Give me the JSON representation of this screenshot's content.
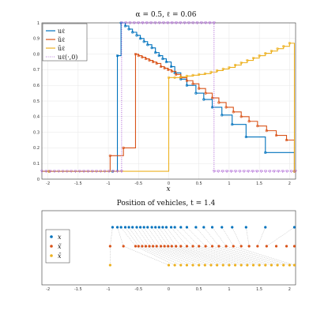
{
  "colors": {
    "blue": "#0072BD",
    "orange": "#D95319",
    "yellow": "#EDB120",
    "purple": "#A24FD0",
    "grid": "#e6e6e6",
    "link": "#888888"
  },
  "chart_data": [
    {
      "type": "line",
      "title": "α = 0.5, ℓ = 0.06",
      "xlabel": "x",
      "ylabel": "",
      "xlim": [
        -2.1,
        2.1
      ],
      "ylim": [
        0,
        1
      ],
      "grid": true,
      "legend_position": "top-left",
      "xticks": [
        "-2",
        "-1.5",
        "-1",
        "-0.5",
        "0",
        "0.5",
        "1",
        "1.5",
        "2"
      ],
      "yticks": [
        "0",
        "0.1",
        "0.2",
        "0.3",
        "0.4",
        "0.5",
        "0.6",
        "0.7",
        "0.8",
        "0.9",
        "1"
      ],
      "series": [
        {
          "name": "uℓ",
          "style": "step",
          "x": [
            -2.1,
            -0.93,
            -0.85,
            -0.79,
            -0.72,
            -0.66,
            -0.6,
            -0.53,
            -0.47,
            -0.41,
            -0.35,
            -0.28,
            -0.22,
            -0.16,
            -0.1,
            -0.04,
            0.04,
            0.1,
            0.2,
            0.3,
            0.45,
            0.58,
            0.72,
            0.88,
            1.05,
            1.28,
            1.6,
            2.08,
            2.1
          ],
          "y": [
            0.05,
            0.05,
            0.79,
            1.0,
            0.98,
            0.96,
            0.94,
            0.92,
            0.9,
            0.88,
            0.86,
            0.84,
            0.81,
            0.79,
            0.77,
            0.75,
            0.72,
            0.68,
            0.64,
            0.6,
            0.55,
            0.51,
            0.46,
            0.41,
            0.35,
            0.27,
            0.17,
            0.05,
            0.05
          ]
        },
        {
          "name": "ũℓ",
          "style": "step",
          "x": [
            -2.1,
            -0.97,
            -0.75,
            -0.55,
            -0.5,
            -0.44,
            -0.38,
            -0.32,
            -0.26,
            -0.2,
            -0.13,
            -0.07,
            -0.01,
            0.05,
            0.12,
            0.2,
            0.3,
            0.4,
            0.5,
            0.61,
            0.72,
            0.83,
            0.95,
            1.07,
            1.2,
            1.33,
            1.47,
            1.62,
            1.78,
            1.95,
            2.08,
            2.1
          ],
          "y": [
            0.05,
            0.15,
            0.2,
            0.8,
            0.79,
            0.78,
            0.77,
            0.76,
            0.75,
            0.74,
            0.72,
            0.71,
            0.7,
            0.69,
            0.67,
            0.65,
            0.63,
            0.61,
            0.58,
            0.55,
            0.52,
            0.49,
            0.46,
            0.43,
            0.4,
            0.37,
            0.34,
            0.31,
            0.28,
            0.25,
            0.05,
            0.05
          ]
        },
        {
          "name": "ūℓ",
          "style": "step",
          "x": [
            -2.1,
            0.0,
            0.1,
            0.2,
            0.3,
            0.4,
            0.5,
            0.6,
            0.7,
            0.8,
            0.9,
            1.0,
            1.1,
            1.2,
            1.3,
            1.4,
            1.5,
            1.6,
            1.7,
            1.8,
            1.9,
            2.0,
            2.08,
            2.1
          ],
          "y": [
            0.05,
            0.65,
            0.65,
            0.655,
            0.66,
            0.665,
            0.67,
            0.675,
            0.685,
            0.695,
            0.705,
            0.715,
            0.73,
            0.745,
            0.76,
            0.775,
            0.79,
            0.805,
            0.82,
            0.835,
            0.85,
            0.87,
            0.05,
            0.05
          ]
        },
        {
          "name": "uℓ(·,0)",
          "style": "step-dotted",
          "x": [
            -2.1,
            -0.78,
            0.75,
            2.1
          ],
          "y": [
            0.05,
            1.0,
            0.05,
            0.05
          ]
        }
      ]
    },
    {
      "type": "scatter",
      "title": "Position of vehicles, t = 1.4",
      "xlabel": "",
      "ylabel": "",
      "xlim": [
        -2.1,
        2.1
      ],
      "grid": false,
      "legend_position": "left",
      "xticks": [
        "-2",
        "-1.5",
        "-1",
        "-0.5",
        "0",
        "0.5",
        "1",
        "1.5",
        "2"
      ],
      "series": [
        {
          "name": "x",
          "row": 3,
          "x": [
            -0.93,
            -0.85,
            -0.79,
            -0.72,
            -0.66,
            -0.6,
            -0.53,
            -0.47,
            -0.41,
            -0.35,
            -0.28,
            -0.22,
            -0.16,
            -0.1,
            -0.04,
            0.04,
            0.1,
            0.2,
            0.3,
            0.45,
            0.58,
            0.72,
            0.88,
            1.05,
            1.28,
            1.6,
            2.08
          ]
        },
        {
          "name": "x̃",
          "row": 2,
          "x": [
            -0.97,
            -0.75,
            -0.55,
            -0.5,
            -0.44,
            -0.38,
            -0.32,
            -0.26,
            -0.2,
            -0.13,
            -0.07,
            -0.01,
            0.05,
            0.12,
            0.2,
            0.3,
            0.4,
            0.5,
            0.61,
            0.72,
            0.83,
            0.95,
            1.07,
            1.2,
            1.33,
            1.47,
            1.62,
            1.78,
            1.95,
            2.08
          ]
        },
        {
          "name": "x̄",
          "row": 1,
          "x": [
            -0.97,
            0.0,
            0.1,
            0.2,
            0.3,
            0.4,
            0.5,
            0.6,
            0.7,
            0.8,
            0.9,
            1.0,
            1.1,
            1.2,
            1.3,
            1.4,
            1.5,
            1.6,
            1.7,
            1.8,
            1.9,
            2.0,
            2.08
          ]
        }
      ]
    }
  ]
}
